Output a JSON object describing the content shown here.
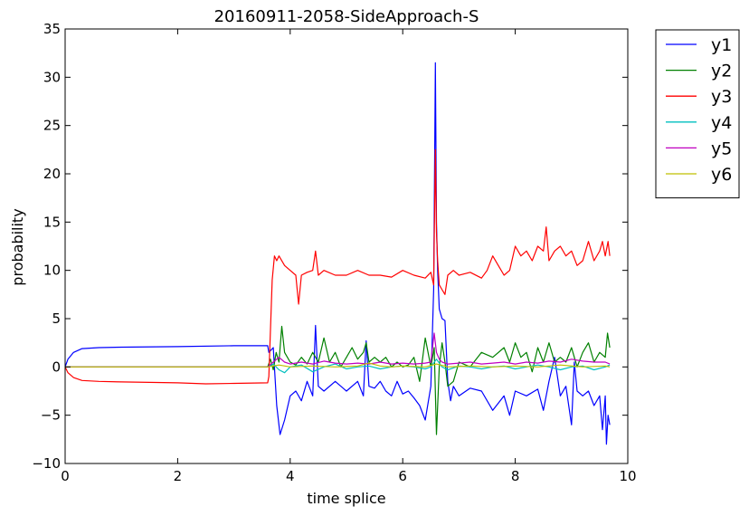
{
  "chart_data": {
    "type": "line",
    "title": "20160911-2058-SideApproach-S",
    "xlabel": "time splice",
    "ylabel": "probability",
    "xlim": [
      0,
      10
    ],
    "ylim": [
      -10,
      35
    ],
    "xticks": [
      0,
      2,
      4,
      6,
      8,
      10
    ],
    "yticks": [
      -10,
      -5,
      0,
      5,
      10,
      15,
      20,
      25,
      30,
      35
    ],
    "grid": false,
    "legend_position": "outside-top-right",
    "series": [
      {
        "name": "y1",
        "color": "#0000ff",
        "x": [
          0,
          0.05,
          0.15,
          0.3,
          0.6,
          1.0,
          2.0,
          3.0,
          3.6,
          3.62,
          3.7,
          3.76,
          3.82,
          3.9,
          4.0,
          4.1,
          4.2,
          4.3,
          4.4,
          4.45,
          4.5,
          4.6,
          4.8,
          5.0,
          5.2,
          5.3,
          5.35,
          5.4,
          5.5,
          5.6,
          5.7,
          5.8,
          5.9,
          6.0,
          6.1,
          6.2,
          6.3,
          6.4,
          6.5,
          6.55,
          6.58,
          6.6,
          6.62,
          6.65,
          6.7,
          6.75,
          6.8,
          6.85,
          6.9,
          7.0,
          7.2,
          7.4,
          7.6,
          7.8,
          7.9,
          8.0,
          8.2,
          8.4,
          8.5,
          8.6,
          8.7,
          8.8,
          8.9,
          9.0,
          9.05,
          9.1,
          9.2,
          9.3,
          9.4,
          9.5,
          9.55,
          9.6,
          9.62,
          9.65,
          9.68
        ],
        "values": [
          0,
          0.8,
          1.5,
          1.9,
          2.0,
          2.05,
          2.1,
          2.2,
          2.2,
          1.5,
          2.0,
          -4.0,
          -7.0,
          -5.5,
          -3.0,
          -2.5,
          -3.5,
          -1.5,
          -3.0,
          4.3,
          -2.0,
          -2.5,
          -1.5,
          -2.5,
          -1.5,
          -3.0,
          2.7,
          -2.0,
          -2.2,
          -1.5,
          -2.5,
          -3.0,
          -1.5,
          -2.8,
          -2.5,
          -3.2,
          -4.0,
          -5.5,
          -2.0,
          8.0,
          31.5,
          15.0,
          10.0,
          6.0,
          5.0,
          4.8,
          -1.5,
          -3.5,
          -2.0,
          -3.0,
          -2.2,
          -2.5,
          -4.5,
          -3.0,
          -5.0,
          -2.5,
          -3.0,
          -2.3,
          -4.5,
          -1.5,
          1.0,
          -3.0,
          -2.0,
          -6.0,
          0.5,
          -2.5,
          -3.0,
          -2.5,
          -4.0,
          -3.0,
          -6.5,
          -3.0,
          -8.0,
          -5.0,
          -6.0
        ]
      },
      {
        "name": "y2",
        "color": "#008000",
        "x": [
          0,
          3.6,
          3.65,
          3.7,
          3.75,
          3.8,
          3.85,
          3.9,
          4.0,
          4.1,
          4.2,
          4.3,
          4.4,
          4.5,
          4.6,
          4.7,
          4.8,
          4.9,
          5.0,
          5.1,
          5.2,
          5.3,
          5.35,
          5.4,
          5.5,
          5.6,
          5.7,
          5.8,
          5.9,
          6.0,
          6.1,
          6.2,
          6.3,
          6.4,
          6.5,
          6.56,
          6.6,
          6.65,
          6.7,
          6.75,
          6.8,
          6.9,
          7.0,
          7.2,
          7.4,
          7.6,
          7.8,
          7.9,
          8.0,
          8.1,
          8.2,
          8.3,
          8.4,
          8.5,
          8.6,
          8.7,
          8.8,
          8.9,
          9.0,
          9.1,
          9.2,
          9.3,
          9.4,
          9.5,
          9.6,
          9.64,
          9.68
        ],
        "values": [
          0,
          0,
          0.8,
          -0.3,
          1.5,
          0.5,
          4.2,
          1.5,
          0.5,
          0.2,
          1.0,
          0.3,
          1.5,
          0.5,
          3.0,
          0.5,
          1.5,
          0.0,
          1.0,
          2.0,
          0.8,
          1.5,
          2.5,
          0.5,
          1.0,
          0.5,
          1.0,
          0.0,
          0.5,
          0.0,
          0.2,
          1.0,
          -1.5,
          3.0,
          0.0,
          2.0,
          -7.0,
          0.0,
          2.5,
          0.5,
          -2.0,
          -1.5,
          0.5,
          0.0,
          1.5,
          1.0,
          2.0,
          0.5,
          2.5,
          1.0,
          1.5,
          -0.5,
          2.0,
          0.5,
          2.5,
          0.5,
          1.0,
          0.5,
          2.0,
          0.0,
          1.5,
          2.5,
          0.5,
          1.5,
          1.0,
          3.5,
          2.0
        ]
      },
      {
        "name": "y3",
        "color": "#ff0000",
        "x": [
          0,
          0.05,
          0.15,
          0.3,
          0.6,
          1.0,
          2.0,
          2.5,
          3.0,
          3.6,
          3.62,
          3.68,
          3.72,
          3.76,
          3.8,
          3.9,
          4.0,
          4.1,
          4.15,
          4.2,
          4.3,
          4.4,
          4.45,
          4.5,
          4.6,
          4.8,
          5.0,
          5.2,
          5.4,
          5.6,
          5.8,
          6.0,
          6.2,
          6.4,
          6.5,
          6.55,
          6.58,
          6.6,
          6.62,
          6.65,
          6.7,
          6.75,
          6.8,
          6.9,
          7.0,
          7.2,
          7.4,
          7.5,
          7.6,
          7.7,
          7.8,
          7.9,
          8.0,
          8.1,
          8.2,
          8.3,
          8.4,
          8.5,
          8.55,
          8.6,
          8.7,
          8.8,
          8.9,
          9.0,
          9.1,
          9.2,
          9.3,
          9.4,
          9.5,
          9.55,
          9.6,
          9.65,
          9.68
        ],
        "values": [
          0,
          -0.6,
          -1.1,
          -1.4,
          -1.5,
          -1.55,
          -1.65,
          -1.75,
          -1.7,
          -1.65,
          -1.0,
          9.0,
          11.5,
          11.0,
          11.5,
          10.5,
          10.0,
          9.5,
          6.5,
          9.5,
          9.8,
          10.0,
          12.0,
          9.5,
          10.0,
          9.5,
          9.5,
          10.0,
          9.5,
          9.5,
          9.3,
          10.0,
          9.5,
          9.2,
          9.8,
          8.5,
          22.5,
          14.0,
          11.0,
          8.5,
          8.0,
          7.5,
          9.5,
          10.0,
          9.5,
          9.8,
          9.2,
          10.0,
          11.5,
          10.5,
          9.5,
          10.0,
          12.5,
          11.5,
          12.0,
          11.0,
          12.5,
          12.0,
          14.5,
          11.0,
          12.0,
          12.5,
          11.5,
          12.0,
          10.5,
          11.0,
          13.0,
          11.0,
          12.0,
          13.0,
          11.5,
          13.0,
          11.5
        ]
      },
      {
        "name": "y4",
        "color": "#00bfbf",
        "x": [
          0,
          3.6,
          3.7,
          3.8,
          3.9,
          4.0,
          4.2,
          4.4,
          4.6,
          4.8,
          5.0,
          5.2,
          5.4,
          5.6,
          5.8,
          6.0,
          6.2,
          6.4,
          6.5,
          6.6,
          6.7,
          6.8,
          7.0,
          7.2,
          7.4,
          7.6,
          7.8,
          8.0,
          8.2,
          8.4,
          8.6,
          8.8,
          9.0,
          9.2,
          9.4,
          9.6,
          9.68
        ],
        "values": [
          0,
          0,
          0.3,
          -0.3,
          -0.6,
          0.0,
          0.2,
          -0.5,
          0.0,
          0.3,
          -0.2,
          0.0,
          0.1,
          -0.2,
          0.0,
          0.1,
          0.0,
          -0.2,
          0.0,
          0.8,
          0.0,
          -0.3,
          0.1,
          0.0,
          -0.2,
          0.0,
          0.1,
          -0.2,
          0.0,
          0.2,
          0.0,
          -0.3,
          0.0,
          0.1,
          -0.3,
          0.0,
          0.2
        ]
      },
      {
        "name": "y5",
        "color": "#bf00bf",
        "x": [
          0,
          3.6,
          3.7,
          3.8,
          3.9,
          4.0,
          4.2,
          4.4,
          4.6,
          4.8,
          5.0,
          5.2,
          5.4,
          5.6,
          5.8,
          6.0,
          6.2,
          6.4,
          6.5,
          6.56,
          6.6,
          6.65,
          6.7,
          6.8,
          7.0,
          7.2,
          7.4,
          7.6,
          7.8,
          8.0,
          8.2,
          8.4,
          8.6,
          8.8,
          9.0,
          9.2,
          9.4,
          9.6,
          9.68
        ],
        "values": [
          0,
          0,
          0.5,
          1.0,
          0.5,
          0.3,
          0.5,
          0.3,
          0.6,
          0.4,
          0.3,
          0.4,
          0.3,
          0.5,
          0.3,
          0.4,
          0.3,
          0.4,
          0.5,
          3.5,
          1.5,
          0.8,
          0.5,
          0.3,
          0.4,
          0.5,
          0.3,
          0.4,
          0.5,
          0.3,
          0.5,
          0.4,
          0.6,
          0.5,
          0.8,
          0.6,
          0.5,
          0.5,
          0.3
        ]
      },
      {
        "name": "y6",
        "color": "#bfbf00",
        "x": [
          0,
          3.6,
          3.8,
          4.0,
          4.4,
          4.8,
          5.2,
          5.4,
          5.6,
          5.8,
          6.0,
          6.4,
          6.6,
          6.8,
          7.2,
          7.6,
          8.0,
          8.4,
          8.8,
          9.2,
          9.6,
          9.68
        ],
        "values": [
          0,
          0,
          0.2,
          0.0,
          0.1,
          0.0,
          0.1,
          0.4,
          0.1,
          0.0,
          0.1,
          0.0,
          0.3,
          0.0,
          0.1,
          0.0,
          0.1,
          0.0,
          0.2,
          0.0,
          0.1,
          0.0
        ]
      }
    ]
  }
}
